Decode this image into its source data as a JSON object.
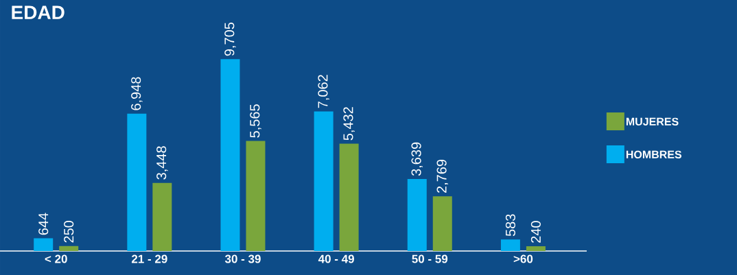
{
  "chart_data": {
    "type": "bar",
    "title": "EDAD",
    "categories": [
      "< 20",
      "21 - 29",
      "30 - 39",
      "40 - 49",
      "50 - 59",
      ">60"
    ],
    "series": [
      {
        "name": "HOMBRES",
        "color": "#00aeef",
        "values": [
          644,
          6948,
          9705,
          7062,
          3639,
          583
        ],
        "value_labels": [
          "644",
          "6,948",
          "9,705",
          "7,062",
          "3,639",
          "583"
        ]
      },
      {
        "name": "MUJERES",
        "color": "#7aa63c",
        "values": [
          250,
          3448,
          5565,
          5432,
          2769,
          240
        ],
        "value_labels": [
          "250",
          "3,448",
          "5,565",
          "5,432",
          "2,769",
          "240"
        ]
      }
    ],
    "legend": "right",
    "grid": false
  }
}
